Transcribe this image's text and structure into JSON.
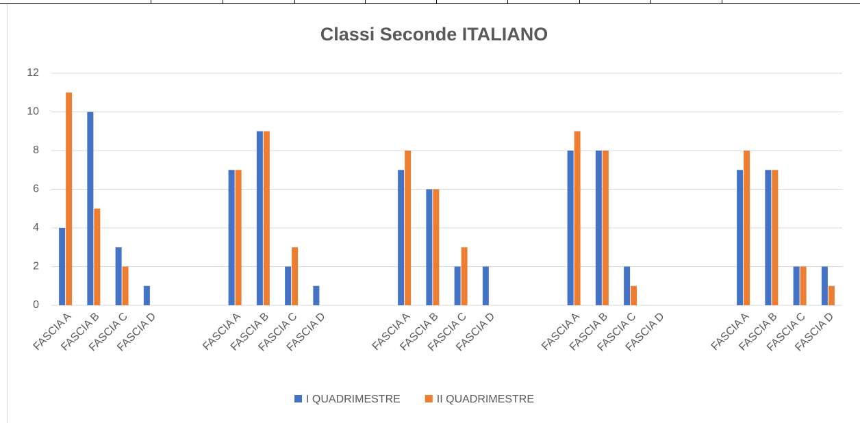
{
  "chart_data": {
    "type": "bar",
    "title": "Classi Seconde ITALIANO",
    "categories": [
      "FASCIA A",
      "FASCIA B",
      "FASCIA C",
      "FASCIA D",
      null,
      null,
      "FASCIA A",
      "FASCIA B",
      "FASCIA C",
      "FASCIA D",
      null,
      null,
      "FASCIA A",
      "FASCIA B",
      "FASCIA C",
      "FASCIA D",
      null,
      null,
      "FASCIA A",
      "FASCIA B",
      "FASCIA C",
      "FASCIA D",
      null,
      null,
      "FASCIA A",
      "FASCIA B",
      "FASCIA C",
      "FASCIA D"
    ],
    "series": [
      {
        "name": "I QUADRIMESTRE",
        "color": "#4472c4",
        "values": [
          4,
          10,
          3,
          1,
          null,
          null,
          7,
          9,
          2,
          1,
          null,
          null,
          7,
          6,
          2,
          2,
          null,
          null,
          8,
          8,
          2,
          0,
          null,
          null,
          7,
          7,
          2,
          2
        ]
      },
      {
        "name": "II QUADRIMESTRE",
        "color": "#ed7d31",
        "values": [
          11,
          5,
          2,
          0,
          null,
          null,
          7,
          9,
          3,
          0,
          null,
          null,
          8,
          6,
          3,
          0,
          null,
          null,
          9,
          8,
          1,
          0,
          null,
          null,
          8,
          7,
          2,
          1
        ]
      }
    ],
    "ylim": [
      0,
      12
    ],
    "yticks": [
      0,
      2,
      4,
      6,
      8,
      10,
      12
    ],
    "grid": true,
    "legend": "bottom"
  }
}
